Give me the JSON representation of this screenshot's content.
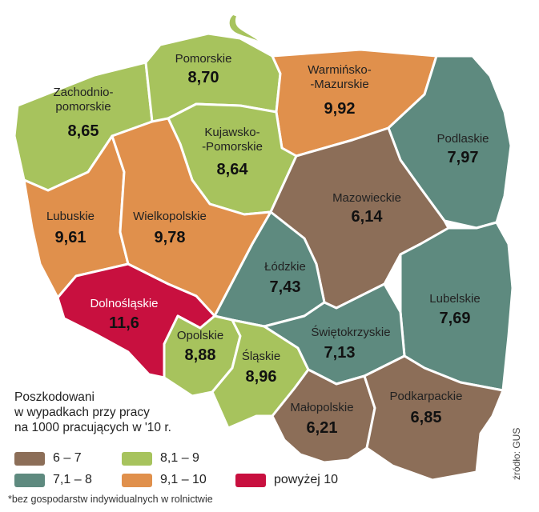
{
  "colors": {
    "range_6_7": "#8c6e58",
    "range_7_8": "#5e8a7f",
    "range_8_9": "#a7c35d",
    "range_9_10": "#e0904c",
    "range_above_10": "#c8103f"
  },
  "regions": [
    {
      "key": "pomorskie",
      "lines": [
        "Pomorskie"
      ],
      "value": "8,70",
      "class": "range_8_9"
    },
    {
      "key": "zachodniopomorskie",
      "lines": [
        "Zachodnio-",
        "pomorskie"
      ],
      "value": "8,65",
      "class": "range_8_9"
    },
    {
      "key": "warminsko_mazurskie",
      "lines": [
        "Warmińsko-",
        "-Mazurskie"
      ],
      "value": "9,92",
      "class": "range_9_10"
    },
    {
      "key": "kujawsko_pomorskie",
      "lines": [
        "Kujawsko-",
        "-Pomorskie"
      ],
      "value": "8,64",
      "class": "range_8_9"
    },
    {
      "key": "podlaskie",
      "lines": [
        "Podlaskie"
      ],
      "value": "7,97",
      "class": "range_7_8"
    },
    {
      "key": "mazowieckie",
      "lines": [
        "Mazowieckie"
      ],
      "value": "6,14",
      "class": "range_6_7"
    },
    {
      "key": "lubuskie",
      "lines": [
        "Lubuskie"
      ],
      "value": "9,61",
      "class": "range_9_10"
    },
    {
      "key": "wielkopolskie",
      "lines": [
        "Wielkopolskie"
      ],
      "value": "9,78",
      "class": "range_9_10"
    },
    {
      "key": "lodzkie",
      "lines": [
        "Łódzkie"
      ],
      "value": "7,43",
      "class": "range_7_8"
    },
    {
      "key": "lubelskie",
      "lines": [
        "Lubelskie"
      ],
      "value": "7,69",
      "class": "range_7_8"
    },
    {
      "key": "dolnoslaskie",
      "lines": [
        "Dolnośląskie"
      ],
      "value": "11,6",
      "class": "range_above_10"
    },
    {
      "key": "opolskie",
      "lines": [
        "Opolskie"
      ],
      "value": "8,88",
      "class": "range_8_9"
    },
    {
      "key": "slaskie",
      "lines": [
        "Śląskie"
      ],
      "value": "8,96",
      "class": "range_8_9"
    },
    {
      "key": "swietokrzyskie",
      "lines": [
        "Świętokrzyskie"
      ],
      "value": "7,13",
      "class": "range_7_8"
    },
    {
      "key": "malopolskie",
      "lines": [
        "Małopolskie"
      ],
      "value": "6,21",
      "class": "range_6_7"
    },
    {
      "key": "podkarpackie",
      "lines": [
        "Podkarpackie"
      ],
      "value": "6,85",
      "class": "range_6_7"
    }
  ],
  "legend": {
    "title_lines": [
      "Poszkodowani",
      "w wypadkach przy pracy",
      "na 1000 pracujących w '10 r."
    ],
    "items": [
      {
        "label": "6 – 7",
        "class": "range_6_7"
      },
      {
        "label": "8,1  –  9",
        "class": "range_8_9"
      },
      {
        "label": "7,1 – 8",
        "class": "range_7_8"
      },
      {
        "label": "9,1  –  10",
        "class": "range_9_10"
      },
      {
        "label": "powyżej 10",
        "class": "range_above_10"
      }
    ]
  },
  "footnote": "*bez gospodarstw indywidualnych w rolnictwie",
  "source": "źródło: GUS"
}
